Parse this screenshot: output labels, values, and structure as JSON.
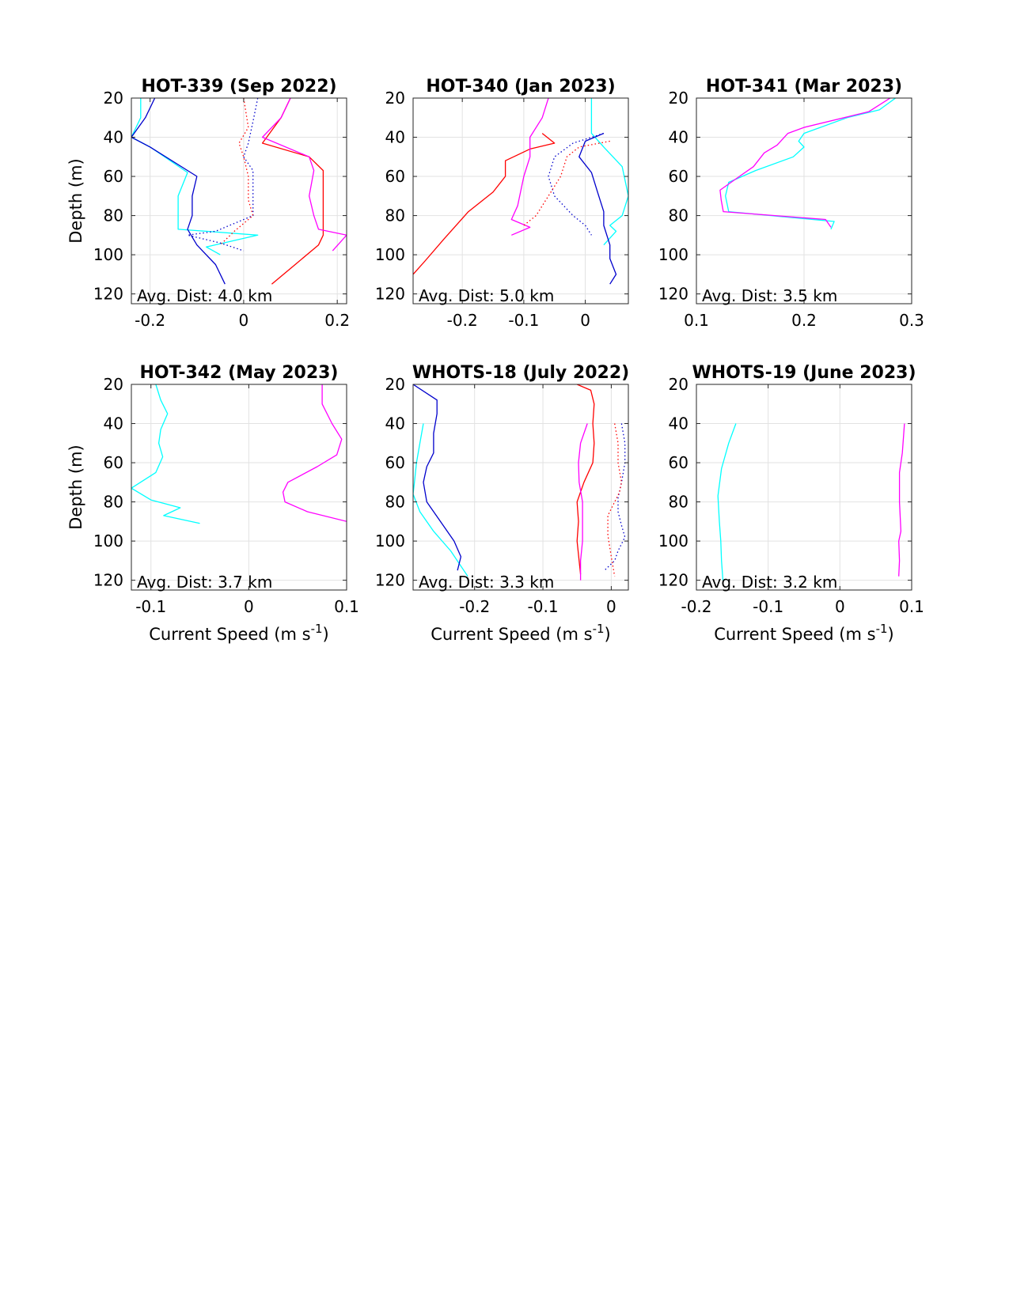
{
  "chart_data": [
    {
      "type": "line",
      "title": "HOT-339 (Sep 2022)",
      "xlabel": "",
      "ylabel": "Depth (m)",
      "xlim": [
        -0.24,
        0.22
      ],
      "ylim": [
        20,
        125
      ],
      "xticks": [
        -0.2,
        0,
        0.2
      ],
      "xtick_labels": [
        "-0.2",
        "0",
        "0.2"
      ],
      "yticks": [
        20,
        40,
        60,
        80,
        100,
        120
      ],
      "ytick_labels": [
        "20",
        "40",
        "60",
        "80",
        "100",
        "120"
      ],
      "y_reversed": true,
      "grid": true,
      "annotation": "Avg. Dist: 4.0 km",
      "series": [
        {
          "color": "#00ffff",
          "dash": "solid",
          "x": [
            -0.22,
            -0.22,
            -0.24,
            -0.2,
            -0.12,
            -0.14,
            -0.14,
            -0.14,
            -0.08,
            0.03,
            -0.08,
            -0.05
          ],
          "y": [
            20,
            30,
            40,
            45,
            58,
            70,
            80,
            87,
            88,
            90,
            96,
            100
          ]
        },
        {
          "color": "#0000cc",
          "dash": "solid",
          "x": [
            -0.19,
            -0.21,
            -0.24,
            -0.2,
            -0.1,
            -0.11,
            -0.11,
            -0.12,
            -0.1,
            -0.06,
            -0.04
          ],
          "y": [
            20,
            30,
            40,
            45,
            60,
            70,
            80,
            87,
            95,
            105,
            115
          ]
        },
        {
          "color": "#ff0000",
          "dash": "solid",
          "x": [
            0.1,
            0.08,
            0.04,
            0.14,
            0.17,
            0.17,
            0.17,
            0.17,
            0.16,
            0.11,
            0.06
          ],
          "y": [
            20,
            30,
            43,
            50,
            57,
            70,
            80,
            90,
            95,
            105,
            115
          ]
        },
        {
          "color": "#ff00ff",
          "dash": "solid",
          "x": [
            0.1,
            0.08,
            0.04,
            0.14,
            0.15,
            0.14,
            0.15,
            0.16,
            0.22,
            0.19
          ],
          "y": [
            20,
            30,
            40,
            50,
            57,
            70,
            80,
            87,
            90,
            98
          ]
        },
        {
          "color": "#0000cc",
          "dash": "dotted",
          "x": [
            0.03,
            0.02,
            0.01,
            0.0,
            0.02,
            0.02,
            0.02,
            -0.06,
            -0.12,
            -0.05,
            0.0
          ],
          "y": [
            20,
            32,
            43,
            50,
            57,
            70,
            80,
            88,
            90,
            94,
            98
          ]
        },
        {
          "color": "#ff0000",
          "dash": "dotted",
          "x": [
            0.0,
            0.01,
            -0.01,
            0.0,
            0.01,
            0.01,
            0.02,
            -0.02,
            -0.05
          ],
          "y": [
            20,
            35,
            43,
            50,
            60,
            72,
            80,
            88,
            95
          ]
        }
      ]
    },
    {
      "type": "line",
      "title": "HOT-340 (Jan 2023)",
      "xlabel": "",
      "ylabel": "",
      "xlim": [
        -0.28,
        0.07
      ],
      "ylim": [
        20,
        125
      ],
      "xticks": [
        -0.2,
        -0.1,
        0
      ],
      "xtick_labels": [
        "-0.2",
        "-0.1",
        "0"
      ],
      "yticks": [
        20,
        40,
        60,
        80,
        100,
        120
      ],
      "ytick_labels": [
        "20",
        "40",
        "60",
        "80",
        "100",
        "120"
      ],
      "y_reversed": true,
      "grid": true,
      "annotation": "Avg. Dist: 5.0 km",
      "series": [
        {
          "color": "#00ffff",
          "dash": "solid",
          "x": [
            0.01,
            0.01,
            0.03,
            0.06,
            0.07,
            0.06,
            0.04,
            0.05,
            0.03
          ],
          "y": [
            20,
            38,
            45,
            55,
            70,
            80,
            85,
            88,
            95
          ]
        },
        {
          "color": "#0000cc",
          "dash": "solid",
          "x": [
            0.03,
            0.0,
            -0.01,
            0.01,
            0.02,
            0.03,
            0.03,
            0.04,
            0.04,
            0.05,
            0.04
          ],
          "y": [
            38,
            42,
            50,
            58,
            68,
            78,
            85,
            95,
            102,
            110,
            115
          ]
        },
        {
          "color": "#ff0000",
          "dash": "solid",
          "x": [
            -0.07,
            -0.05,
            -0.09,
            -0.13,
            -0.13,
            -0.15,
            -0.19,
            -0.23,
            -0.26,
            -0.28
          ],
          "y": [
            38,
            43,
            46,
            52,
            60,
            68,
            78,
            92,
            103,
            110
          ]
        },
        {
          "color": "#ff00ff",
          "dash": "solid",
          "x": [
            -0.06,
            -0.07,
            -0.09,
            -0.09,
            -0.1,
            -0.11,
            -0.12,
            -0.09,
            -0.12
          ],
          "y": [
            20,
            30,
            40,
            50,
            60,
            75,
            82,
            86,
            90
          ]
        },
        {
          "color": "#0000cc",
          "dash": "dotted",
          "x": [
            0.03,
            -0.02,
            -0.05,
            -0.06,
            -0.05,
            -0.02,
            0.0,
            0.01
          ],
          "y": [
            38,
            43,
            50,
            60,
            70,
            80,
            85,
            90
          ]
        },
        {
          "color": "#ff0000",
          "dash": "dotted",
          "x": [
            0.04,
            -0.01,
            -0.03,
            -0.04,
            -0.06,
            -0.08,
            -0.1
          ],
          "y": [
            42,
            45,
            50,
            60,
            70,
            80,
            85
          ]
        }
      ]
    },
    {
      "type": "line",
      "title": "HOT-341 (Mar 2023)",
      "xlabel": "",
      "ylabel": "",
      "xlim": [
        0.1,
        0.3
      ],
      "ylim": [
        20,
        125
      ],
      "xticks": [
        0.1,
        0.2,
        0.3
      ],
      "xtick_labels": [
        "0.1",
        "0.2",
        "0.3"
      ],
      "yticks": [
        20,
        40,
        60,
        80,
        100,
        120
      ],
      "ytick_labels": [
        "20",
        "40",
        "60",
        "80",
        "100",
        "120"
      ],
      "y_reversed": true,
      "grid": true,
      "annotation": "Avg. Dist: 3.5 km",
      "series": [
        {
          "color": "#00ffff",
          "dash": "solid",
          "x": [
            0.285,
            0.27,
            0.24,
            0.2,
            0.195,
            0.2,
            0.19,
            0.155,
            0.13,
            0.127,
            0.13,
            0.228,
            0.225
          ],
          "y": [
            20,
            26,
            30,
            38,
            42,
            45,
            50,
            57,
            63,
            70,
            78,
            83,
            87
          ]
        },
        {
          "color": "#ff00ff",
          "dash": "solid",
          "x": [
            0.28,
            0.26,
            0.2,
            0.185,
            0.175,
            0.163,
            0.153,
            0.14,
            0.122,
            0.123,
            0.125,
            0.22,
            0.225
          ],
          "y": [
            20,
            27,
            35,
            38,
            44,
            48,
            55,
            60,
            67,
            72,
            78,
            82,
            86
          ]
        }
      ]
    },
    {
      "type": "line",
      "title": "HOT-342 (May 2023)",
      "xlabel": "Current Speed (m s",
      "xlabel_sup": "-1",
      "xlabel_end": ")",
      "ylabel": "Depth (m)",
      "xlim": [
        -0.12,
        0.1
      ],
      "ylim": [
        20,
        125
      ],
      "xticks": [
        -0.1,
        0,
        0.1
      ],
      "xtick_labels": [
        "-0.1",
        "0",
        "0.1"
      ],
      "yticks": [
        20,
        40,
        60,
        80,
        100,
        120
      ],
      "ytick_labels": [
        "20",
        "40",
        "60",
        "80",
        "100",
        "120"
      ],
      "y_reversed": true,
      "grid": true,
      "annotation": "Avg. Dist: 3.7 km",
      "series": [
        {
          "color": "#00ffff",
          "dash": "solid",
          "x": [
            -0.095,
            -0.09,
            -0.083,
            -0.09,
            -0.092,
            -0.088,
            -0.095,
            -0.12,
            -0.1,
            -0.07,
            -0.087,
            -0.05
          ],
          "y": [
            20,
            28,
            35,
            43,
            50,
            57,
            65,
            73,
            79,
            83,
            87,
            91
          ]
        },
        {
          "color": "#ff00ff",
          "dash": "solid",
          "x": [
            0.075,
            0.075,
            0.085,
            0.095,
            0.09,
            0.07,
            0.04,
            0.035,
            0.037,
            0.06,
            0.1
          ],
          "y": [
            20,
            30,
            40,
            48,
            56,
            62,
            70,
            75,
            80,
            85,
            90
          ]
        }
      ]
    },
    {
      "type": "line",
      "title": "WHOTS-18 (July 2022)",
      "xlabel": "Current Speed (m s",
      "xlabel_sup": "-1",
      "xlabel_end": ")",
      "ylabel": "",
      "xlim": [
        -0.29,
        0.025
      ],
      "ylim": [
        20,
        125
      ],
      "xticks": [
        -0.2,
        -0.1,
        0
      ],
      "xtick_labels": [
        "-0.2",
        "-0.1",
        "0"
      ],
      "yticks": [
        20,
        40,
        60,
        80,
        100,
        120
      ],
      "ytick_labels": [
        "20",
        "40",
        "60",
        "80",
        "100",
        "120"
      ],
      "y_reversed": true,
      "grid": true,
      "annotation": "Avg. Dist: 3.3 km",
      "series": [
        {
          "color": "#00ffff",
          "dash": "solid",
          "x": [
            -0.275,
            -0.28,
            -0.285,
            -0.288,
            -0.29,
            -0.28,
            -0.26,
            -0.235,
            -0.21
          ],
          "y": [
            40,
            50,
            60,
            70,
            76,
            85,
            95,
            105,
            118
          ]
        },
        {
          "color": "#0000cc",
          "dash": "solid",
          "x": [
            -0.29,
            -0.255,
            -0.255,
            -0.26,
            -0.26,
            -0.27,
            -0.275,
            -0.27,
            -0.25,
            -0.23,
            -0.22,
            -0.225
          ],
          "y": [
            20,
            28,
            35,
            45,
            55,
            62,
            70,
            80,
            90,
            100,
            108,
            115
          ]
        },
        {
          "color": "#ff0000",
          "dash": "solid",
          "x": [
            -0.05,
            -0.03,
            -0.025,
            -0.027,
            -0.025,
            -0.027,
            -0.04,
            -0.05,
            -0.048,
            -0.05,
            -0.045
          ],
          "y": [
            20,
            23,
            30,
            40,
            50,
            60,
            70,
            80,
            90,
            100,
            117
          ]
        },
        {
          "color": "#ff00ff",
          "dash": "solid",
          "x": [
            -0.035,
            -0.045,
            -0.048,
            -0.047,
            -0.042,
            -0.042,
            -0.042,
            -0.045,
            -0.045
          ],
          "y": [
            40,
            50,
            60,
            70,
            80,
            90,
            100,
            110,
            120
          ]
        },
        {
          "color": "#0000cc",
          "dash": "dotted",
          "x": [
            0.015,
            0.02,
            0.02,
            0.015,
            0.01,
            0.01,
            0.015,
            0.02,
            0.01,
            0.005,
            -0.01
          ],
          "y": [
            40,
            50,
            60,
            70,
            78,
            85,
            92,
            98,
            105,
            110,
            115
          ]
        },
        {
          "color": "#ff0000",
          "dash": "dotted",
          "x": [
            0.005,
            0.01,
            0.01,
            0.015,
            0.012,
            0.005,
            -0.005,
            -0.005,
            0.0,
            0.005
          ],
          "y": [
            40,
            50,
            60,
            70,
            75,
            80,
            87,
            97,
            108,
            118
          ]
        }
      ]
    },
    {
      "type": "line",
      "title": "WHOTS-19 (June 2023)",
      "xlabel": "Current Speed (m s",
      "xlabel_sup": "-1",
      "xlabel_end": ")",
      "ylabel": "",
      "xlim": [
        -0.2,
        0.1
      ],
      "ylim": [
        20,
        125
      ],
      "xticks": [
        -0.2,
        -0.1,
        0,
        0.1
      ],
      "xtick_labels": [
        "-0.2",
        "-0.1",
        "0",
        "0.1"
      ],
      "yticks": [
        20,
        40,
        60,
        80,
        100,
        120
      ],
      "ytick_labels": [
        "20",
        "40",
        "60",
        "80",
        "100",
        "120"
      ],
      "y_reversed": true,
      "grid": true,
      "annotation": "Avg. Dist: 3.2 km",
      "series": [
        {
          "color": "#00ffff",
          "dash": "solid",
          "x": [
            -0.145,
            -0.155,
            -0.165,
            -0.17,
            -0.168,
            -0.166,
            -0.165,
            -0.163
          ],
          "y": [
            40,
            50,
            63,
            77,
            90,
            100,
            110,
            120
          ]
        },
        {
          "color": "#ff00ff",
          "dash": "solid",
          "x": [
            0.09,
            0.087,
            0.083,
            0.083,
            0.085,
            0.082,
            0.083,
            0.082
          ],
          "y": [
            40,
            55,
            65,
            80,
            95,
            100,
            110,
            118
          ]
        }
      ]
    }
  ]
}
